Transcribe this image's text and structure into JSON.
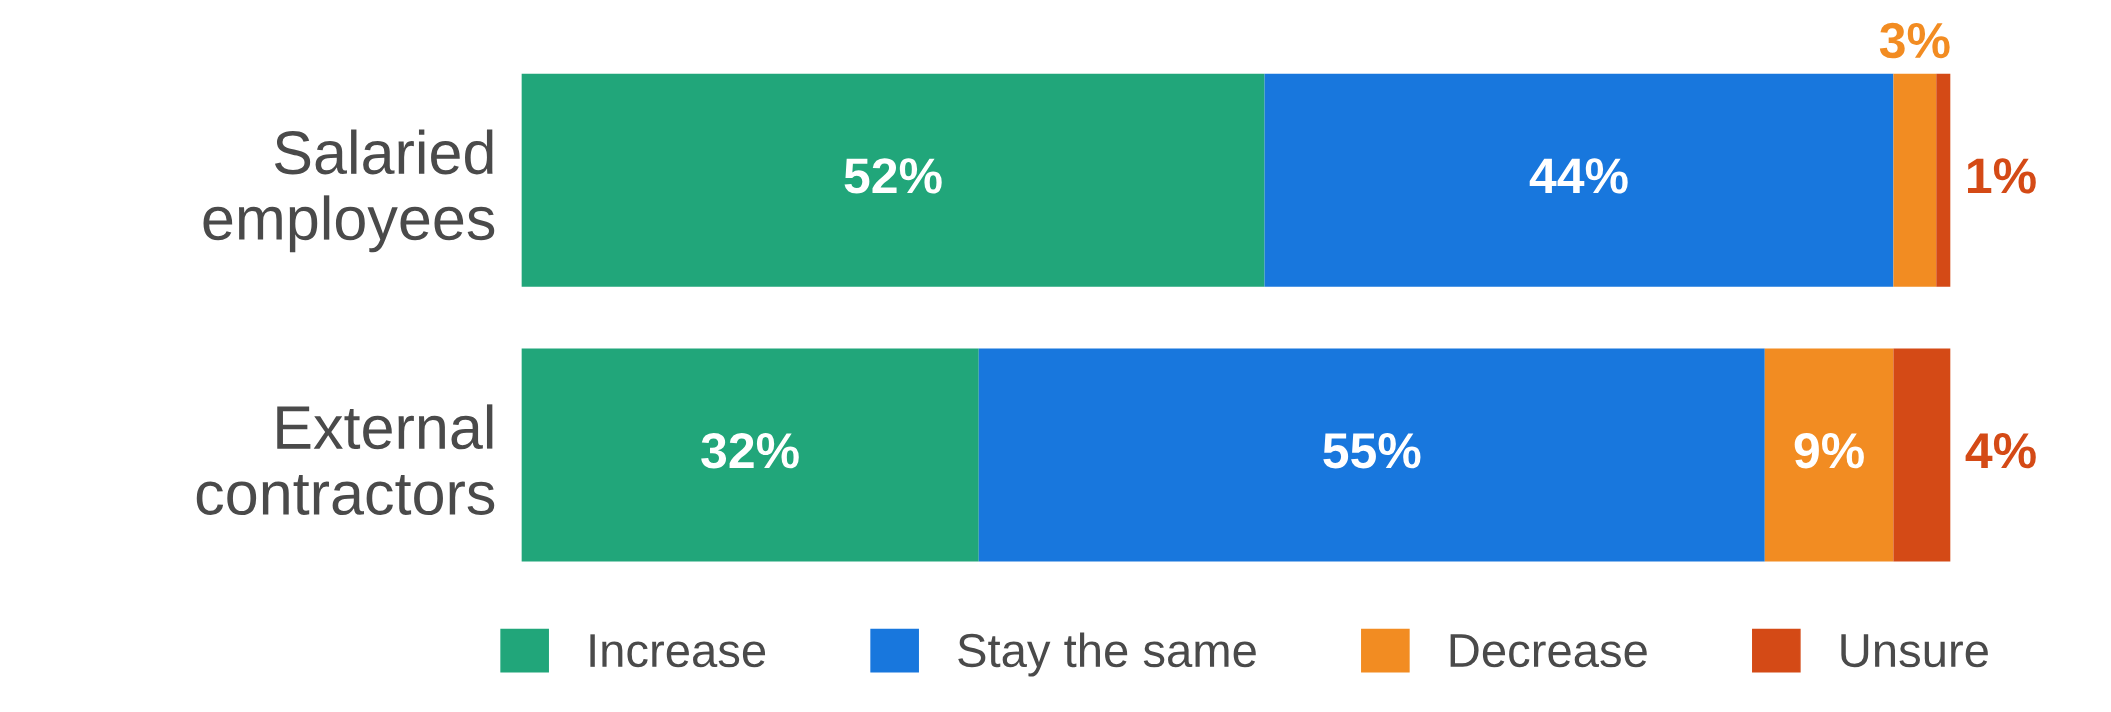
{
  "chart_data": {
    "type": "bar",
    "orientation": "horizontal",
    "stacked": true,
    "categories": [
      "Salaried\nemployees",
      "External\ncontractors"
    ],
    "series": [
      {
        "name": "Increase",
        "color": "#21a67a",
        "values": [
          52,
          32
        ],
        "value_labels": [
          "52%",
          "32%"
        ]
      },
      {
        "name": "Stay the same",
        "color": "#1877dd",
        "values": [
          44,
          55
        ],
        "value_labels": [
          "44%",
          "55%"
        ]
      },
      {
        "name": "Decrease",
        "color": "#f28c22",
        "values": [
          3,
          9
        ],
        "value_labels": [
          "3%",
          "9%"
        ]
      },
      {
        "name": "Unsure",
        "color": "#d44a16",
        "values": [
          1,
          4
        ],
        "value_labels": [
          "1%",
          "4%"
        ]
      }
    ],
    "xlim": [
      0,
      100
    ],
    "tick_labels": "y",
    "legend": "bottom",
    "grid": false
  }
}
